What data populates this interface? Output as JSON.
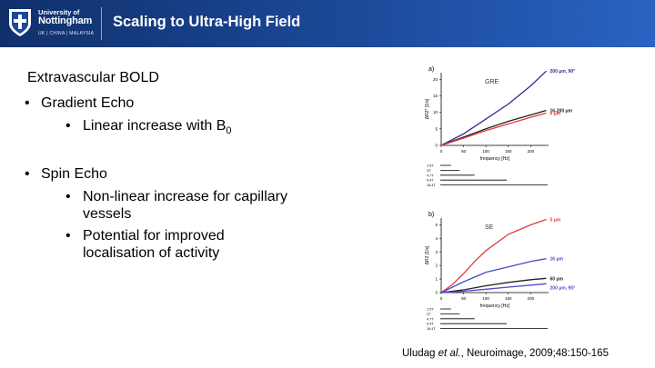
{
  "header": {
    "logo": {
      "line1": "University of",
      "line2": "Nottingham",
      "line3": "UK | CHINA | MALAYSIA"
    },
    "title": "Scaling to Ultra-High Field",
    "colors": {
      "bg_start": "#10306b",
      "bg_end": "#2a63c2",
      "text": "#ffffff"
    }
  },
  "content": {
    "heading": "Extravascular BOLD",
    "b1": "Gradient Echo",
    "b1_sub1_prefix": "Linear increase with B",
    "b1_sub1_subscript": "0",
    "b2": "Spin Echo",
    "b2_sub1_line1": "Non-linear increase for capillary",
    "b2_sub1_line2": "vessels",
    "b2_sub2_line1": "Potential for improved",
    "b2_sub2_line2": "localisation of activity",
    "bullet_char": "•"
  },
  "citation": {
    "author": "Uludag ",
    "etal": "et al.",
    "rest": ", Neuroimage, 2009;48:150-165"
  },
  "chart_data": [
    {
      "type": "line",
      "panel_label": "a)",
      "title": "GRE",
      "xlabel": "frequency [Hz]",
      "ylabel": "ΔR2* [1/s]",
      "xlim": [
        0,
        240
      ],
      "ylim": [
        0,
        22
      ],
      "xticks": [
        0,
        50,
        100,
        150,
        200
      ],
      "yticks": [
        0,
        5,
        10,
        15,
        20
      ],
      "series": [
        {
          "name": "200 μm, 90°",
          "color": "#2e2a9a",
          "x": [
            0,
            50,
            100,
            150,
            200,
            235
          ],
          "y": [
            0,
            3.5,
            8,
            12.5,
            18,
            22.5
          ]
        },
        {
          "name": "16-200 μm",
          "color": "#222222",
          "x": [
            0,
            50,
            100,
            150,
            200,
            235
          ],
          "y": [
            0,
            2.5,
            5,
            7.3,
            9.2,
            10.6
          ]
        },
        {
          "name": "5 μm",
          "color": "#e03c3c",
          "x": [
            0,
            50,
            100,
            150,
            200,
            235
          ],
          "y": [
            0,
            2.2,
            4.5,
            6.5,
            8.5,
            9.8
          ]
        }
      ],
      "field_strengths": [
        "1.5T",
        "3T",
        "4.7T",
        "9.4T",
        "16.4T"
      ]
    },
    {
      "type": "line",
      "panel_label": "b)",
      "title": "SE",
      "xlabel": "frequency [Hz]",
      "ylabel": "ΔR2 [1/s]",
      "xlim": [
        0,
        240
      ],
      "ylim": [
        0,
        5.5
      ],
      "xticks": [
        0,
        50,
        100,
        150,
        200
      ],
      "yticks": [
        0,
        1,
        2,
        3,
        4,
        5
      ],
      "series": [
        {
          "name": "5 μm",
          "color": "#e03c3c",
          "x": [
            0,
            25,
            50,
            75,
            100,
            150,
            200,
            235
          ],
          "y": [
            0,
            0.6,
            1.4,
            2.3,
            3.1,
            4.3,
            5.0,
            5.4
          ]
        },
        {
          "name": "16 μm",
          "color": "#4a4ad0",
          "x": [
            0,
            50,
            100,
            150,
            200,
            235
          ],
          "y": [
            0,
            0.8,
            1.5,
            1.9,
            2.3,
            2.5
          ]
        },
        {
          "name": "60 μm",
          "color": "#222222",
          "x": [
            0,
            50,
            100,
            150,
            200,
            235
          ],
          "y": [
            0,
            0.2,
            0.5,
            0.75,
            0.95,
            1.05
          ]
        },
        {
          "name": "200 μm, 90°",
          "color": "#4a4ad0",
          "x": [
            0,
            50,
            100,
            150,
            200,
            235
          ],
          "y": [
            0,
            0.1,
            0.25,
            0.4,
            0.55,
            0.65
          ]
        }
      ],
      "field_strengths": [
        "1.5T",
        "3T",
        "4.7T",
        "9.4T",
        "16.4T"
      ]
    }
  ]
}
